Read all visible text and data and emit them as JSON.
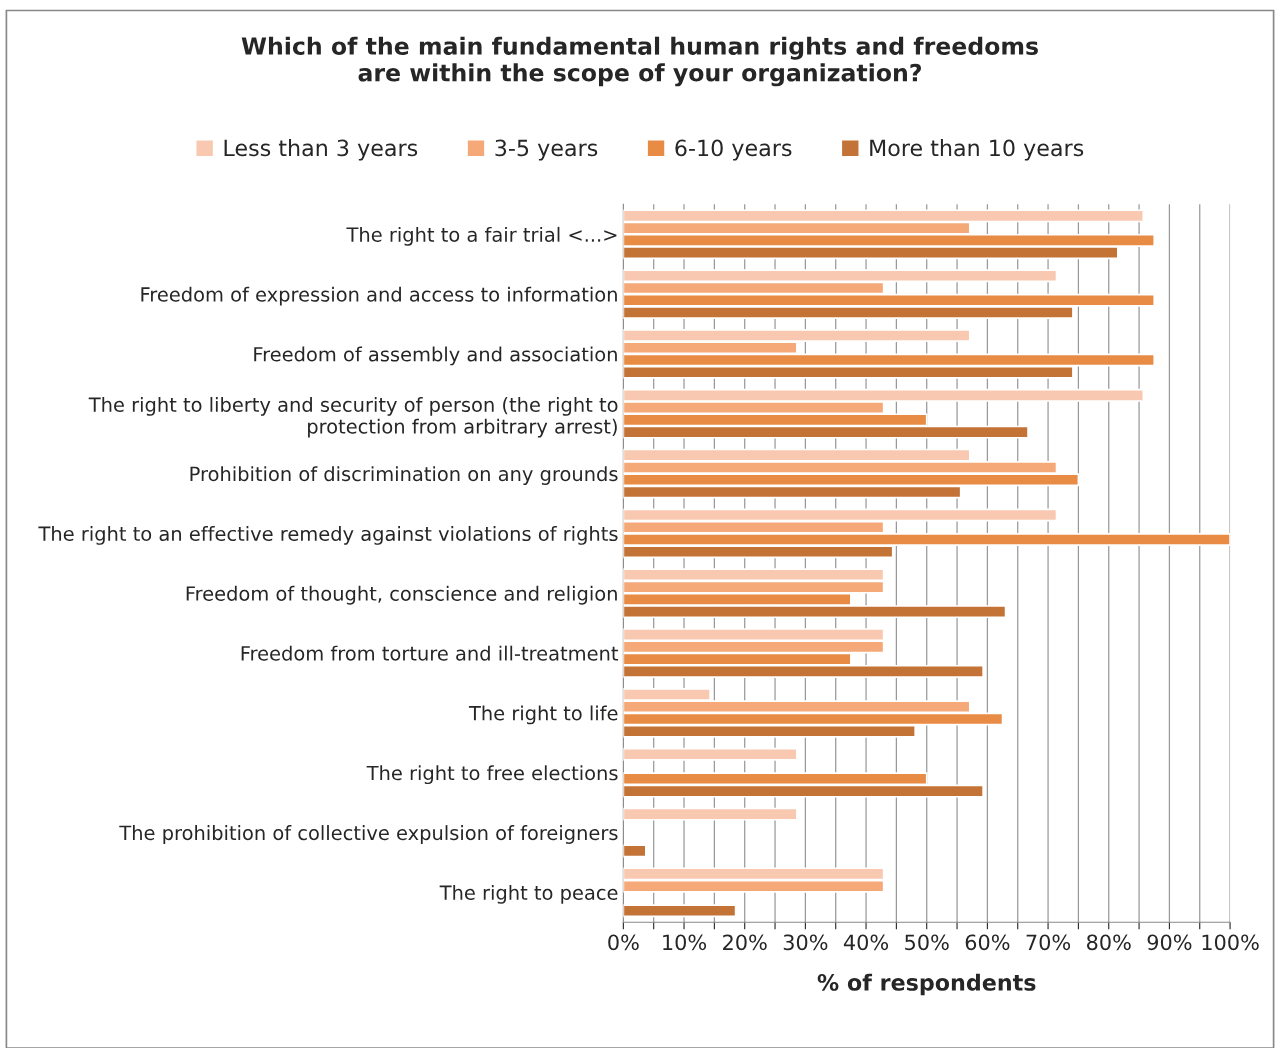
{
  "chart_data": {
    "type": "bar",
    "orientation": "horizontal",
    "title": "Which of the main fundamental human rights and freedoms\nare within the scope of your organization?",
    "xlabel": "% of respondents",
    "categories": [
      "The right to a fair trial <...>",
      "Freedom of expression and access to information",
      "Freedom of assembly and association",
      "The right to liberty and security of person (the right to\nprotection from arbitrary arrest)",
      "Prohibition of discrimination on any grounds",
      "The right to an effective remedy against violations of rights",
      "Freedom of thought, conscience and religion",
      "Freedom from torture and ill-treatment",
      "The right to life",
      "The right to free elections",
      "The prohibition of collective expulsion of foreigners",
      "The right to peace"
    ],
    "series": [
      {
        "name": "Less than 3 years",
        "color": "#f8c9b0",
        "values": [
          85.7,
          71.4,
          57.1,
          85.7,
          57.1,
          71.4,
          42.9,
          42.9,
          14.3,
          28.6,
          28.6,
          42.9
        ]
      },
      {
        "name": "3-5 years",
        "color": "#f5a978",
        "values": [
          57.1,
          42.9,
          28.6,
          42.9,
          71.4,
          42.9,
          42.9,
          42.9,
          57.1,
          null,
          null,
          42.9
        ]
      },
      {
        "name": "6-10 years",
        "color": "#e88b44",
        "values": [
          87.5,
          87.5,
          87.5,
          50.0,
          75.0,
          100,
          37.5,
          37.5,
          62.5,
          50.0,
          null,
          null
        ]
      },
      {
        "name": "More than 10 years",
        "color": "#c47336",
        "values": [
          81.5,
          74.1,
          74.1,
          66.7,
          55.6,
          44.4,
          63.0,
          59.3,
          48.1,
          59.3,
          3.7,
          18.5
        ]
      }
    ],
    "xlim": [
      0,
      100
    ],
    "xticks": [
      {
        "value": 0,
        "label": "0%"
      },
      {
        "value": 5,
        "label": null
      },
      {
        "value": 10,
        "label": "10%"
      },
      {
        "value": 15,
        "label": null
      },
      {
        "value": 20,
        "label": "20%"
      },
      {
        "value": 25,
        "label": null
      },
      {
        "value": 30,
        "label": "30%"
      },
      {
        "value": 35,
        "label": null
      },
      {
        "value": 40,
        "label": "40%"
      },
      {
        "value": 45,
        "label": null
      },
      {
        "value": 50,
        "label": "50%"
      },
      {
        "value": 55,
        "label": null
      },
      {
        "value": 60,
        "label": "60%"
      },
      {
        "value": 65,
        "label": null
      },
      {
        "value": 70,
        "label": "70%"
      },
      {
        "value": 75,
        "label": null
      },
      {
        "value": 80,
        "label": "80%"
      },
      {
        "value": 85,
        "label": null
      },
      {
        "value": 90,
        "label": "90%"
      },
      {
        "value": 95,
        "label": null
      },
      {
        "value": 100,
        "label": "100%"
      }
    ],
    "grid": "x",
    "legend": "top"
  }
}
